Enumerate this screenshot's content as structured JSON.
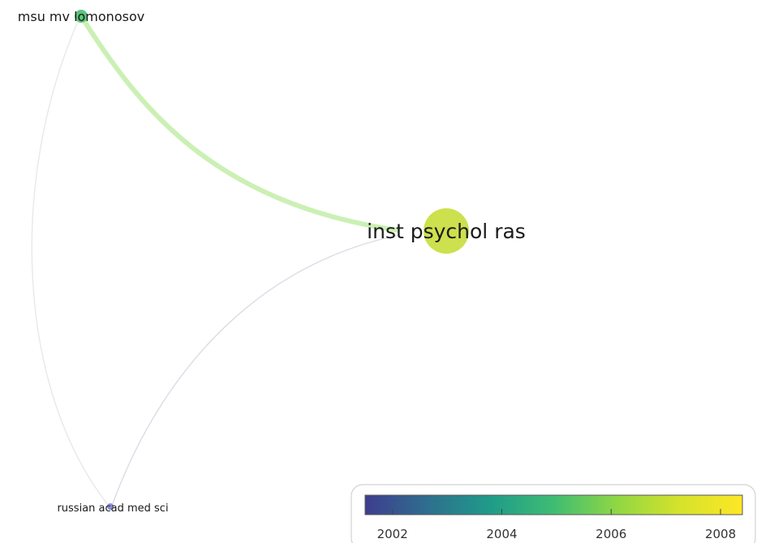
{
  "nodes": [
    {
      "id": "inst-psychol-ras",
      "label": "inst psychol ras",
      "year": 2007.8
    },
    {
      "id": "msu-mv-lomonosov",
      "label": "msu mv lomonosov",
      "year": 2005.6
    },
    {
      "id": "russian-acad-med-sci",
      "label": "russian acad med sci",
      "year": 2001.8
    }
  ],
  "links": [
    {
      "source": "msu-mv-lomonosov",
      "target": "inst-psychol-ras",
      "strength": "strong",
      "color": "#c8efb0"
    },
    {
      "source": "russian-acad-med-sci",
      "target": "inst-psychol-ras",
      "strength": "weak",
      "color": "#d8d6e2"
    },
    {
      "source": "msu-mv-lomonosov",
      "target": "russian-acad-med-sci",
      "strength": "weak",
      "color": "#e6e6ea"
    }
  ],
  "colorbar": {
    "min": 2001.5,
    "max": 2008.4,
    "ticks": [
      "2002",
      "2004",
      "2006",
      "2008"
    ],
    "colors": [
      "#3e3d8f",
      "#2e6f8e",
      "#1f9c89",
      "#3fbc73",
      "#8fd744",
      "#d6e22b",
      "#fde725"
    ]
  },
  "node_colors": {
    "inst-psychol-ras": "#c7de3a",
    "msu-mv-lomonosov": "#5bc47a",
    "russian-acad-med-sci": "#8a8fd6"
  }
}
